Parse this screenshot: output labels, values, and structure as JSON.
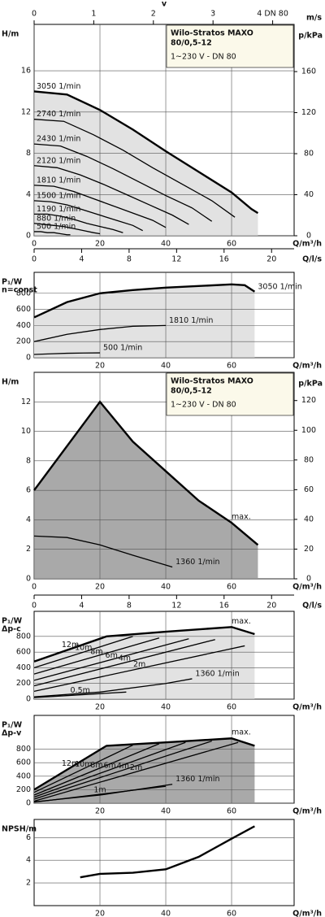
{
  "chart_data": [
    {
      "type": "axis",
      "xlabel": "v",
      "unit": "m/s",
      "xlim": [
        0,
        4.36
      ],
      "xticks": [
        0,
        1,
        2,
        3,
        {
          "value": 4,
          "label": "4 DN 80"
        }
      ]
    },
    {
      "type": "line",
      "title": [
        "Wilo-Stratos MAXO",
        "80/0,5-12"
      ],
      "subtitle": "1~230 V - DN 80",
      "ylabel": [
        "H/m"
      ],
      "y2label": "p/kPa",
      "xlabel": "Q/m³/h",
      "xlim": [
        0,
        79
      ],
      "xticks": [
        0,
        20,
        40,
        60
      ],
      "ylim": [
        0,
        20.5
      ],
      "yticks": [
        0,
        4,
        8,
        12,
        16
      ],
      "y2lim": [
        0,
        206
      ],
      "y2ticks": [
        0,
        40,
        80,
        120,
        160
      ],
      "fill": "#e2e2e2",
      "series": [
        {
          "name": "3050 1/min",
          "x": [
            0,
            10,
            20,
            30,
            40,
            50,
            60,
            66,
            68
          ],
          "values": [
            14,
            13.7,
            12.2,
            10.3,
            8.2,
            6.2,
            4.2,
            2.6,
            2.2
          ]
        },
        {
          "name": "2740 1/min",
          "x": [
            0,
            9,
            18,
            27,
            36,
            45,
            54,
            61
          ],
          "values": [
            11.3,
            11.1,
            9.8,
            8.3,
            6.6,
            5.0,
            3.4,
            1.8
          ]
        },
        {
          "name": "2430 1/min",
          "x": [
            0,
            8,
            16,
            24,
            32,
            40,
            48,
            54
          ],
          "values": [
            8.9,
            8.7,
            7.7,
            6.5,
            5.2,
            3.9,
            2.7,
            1.4
          ]
        },
        {
          "name": "2120 1/min",
          "x": [
            0,
            7,
            14,
            21,
            28,
            35,
            42,
            47
          ],
          "values": [
            6.8,
            6.6,
            5.9,
            5.0,
            4.0,
            3.0,
            2.0,
            1.1
          ]
        },
        {
          "name": "1810 1/min",
          "x": [
            0,
            6,
            12,
            18,
            24,
            30,
            36,
            40
          ],
          "values": [
            4.9,
            4.8,
            4.3,
            3.6,
            2.9,
            2.2,
            1.5,
            0.8
          ]
        },
        {
          "name": "1500 1/min",
          "x": [
            0,
            5,
            10,
            15,
            20,
            25,
            30,
            33
          ],
          "values": [
            3.4,
            3.3,
            3.0,
            2.5,
            2.0,
            1.5,
            1.0,
            0.5
          ]
        },
        {
          "name": "1190 1/min",
          "x": [
            0,
            4,
            8,
            12,
            16,
            20,
            24,
            27
          ],
          "values": [
            2.1,
            2.1,
            1.9,
            1.6,
            1.2,
            0.9,
            0.6,
            0.3
          ]
        },
        {
          "name": "880 1/min",
          "x": [
            0,
            3,
            6,
            9,
            12,
            15,
            18,
            20
          ],
          "values": [
            1.2,
            1.1,
            1.0,
            0.9,
            0.7,
            0.5,
            0.3,
            0.2
          ]
        },
        {
          "name": "500 1/min",
          "x": [
            0,
            2,
            4,
            6,
            8,
            10,
            11
          ],
          "values": [
            0.4,
            0.4,
            0.3,
            0.3,
            0.2,
            0.1,
            0.1
          ]
        }
      ]
    },
    {
      "type": "axis",
      "xlabel": "Q/l/s",
      "xlim": [
        0,
        21.9
      ],
      "xticks": [
        0,
        4,
        8,
        12,
        16,
        20
      ]
    },
    {
      "type": "line",
      "ylabel": [
        "P₁/W",
        "n=const"
      ],
      "xlabel": "Q/m³/h",
      "xlim": [
        0,
        79
      ],
      "xticks": [
        20,
        40,
        60
      ],
      "ylim": [
        0,
        1060
      ],
      "yticks": [
        0,
        200,
        400,
        600,
        800
      ],
      "fill": "#e2e2e2",
      "series": [
        {
          "name": "3050 1/min",
          "x": [
            0,
            10,
            20,
            30,
            40,
            50,
            60,
            64,
            67
          ],
          "values": [
            500,
            690,
            800,
            840,
            870,
            890,
            910,
            900,
            820
          ]
        },
        {
          "name": "1810 1/min",
          "x": [
            0,
            10,
            20,
            30,
            40
          ],
          "values": [
            200,
            290,
            350,
            390,
            400
          ]
        },
        {
          "name": "500 1/min",
          "x": [
            0,
            5,
            10,
            15,
            20
          ],
          "values": [
            40,
            48,
            55,
            58,
            60
          ]
        }
      ]
    },
    {
      "type": "line",
      "title": [
        "Wilo-Stratos MAXO",
        "80/0,5-12"
      ],
      "subtitle": "1~230 V - DN 80",
      "ylabel": [
        "H/m"
      ],
      "y2label": "p/kPa",
      "xlabel": "Q/m³/h",
      "xlim": [
        0,
        79
      ],
      "xticks": [
        0,
        20,
        40,
        60
      ],
      "ylim": [
        0,
        14
      ],
      "yticks": [
        0,
        2,
        4,
        6,
        8,
        10,
        12
      ],
      "y2lim": [
        0,
        139
      ],
      "y2ticks": [
        0,
        20,
        40,
        60,
        80,
        100,
        120
      ],
      "fill": "#a9a9a9",
      "series": [
        {
          "name": "max.",
          "x": [
            0,
            20,
            30,
            40,
            50,
            60,
            68
          ],
          "values": [
            6,
            12,
            9.3,
            7.3,
            5.3,
            3.8,
            2.3
          ]
        },
        {
          "name": "1360 1/min",
          "x": [
            0,
            10,
            20,
            30,
            42
          ],
          "values": [
            2.9,
            2.8,
            2.3,
            1.6,
            0.8
          ]
        }
      ]
    },
    {
      "type": "axis",
      "xlabel": "Q/l/s",
      "xlim": [
        0,
        21.9
      ],
      "xticks": [
        0,
        4,
        8,
        12,
        16,
        20
      ]
    },
    {
      "type": "line",
      "ylabel": [
        "P₁/W",
        "Δp-c"
      ],
      "xlabel": "Q/m³/h",
      "xlim": [
        0,
        79
      ],
      "xticks": [
        20,
        40,
        60
      ],
      "ylim": [
        0,
        1120
      ],
      "yticks": [
        0,
        200,
        400,
        600,
        800
      ],
      "fill": "#e2e2e2",
      "series": [
        {
          "name": "max.",
          "x": [
            0,
            22,
            40,
            60,
            67
          ],
          "values": [
            480,
            800,
            860,
            920,
            830
          ]
        },
        {
          "name": "12m",
          "x": [
            0,
            22
          ],
          "values": [
            480,
            800
          ]
        },
        {
          "name": "10m",
          "x": [
            0,
            30
          ],
          "values": [
            400,
            800
          ]
        },
        {
          "name": "8m",
          "x": [
            0,
            38
          ],
          "values": [
            320,
            780
          ]
        },
        {
          "name": "6m",
          "x": [
            0,
            47
          ],
          "values": [
            240,
            770
          ]
        },
        {
          "name": "4m",
          "x": [
            0,
            55
          ],
          "values": [
            170,
            760
          ]
        },
        {
          "name": "2m",
          "x": [
            0,
            64
          ],
          "values": [
            100,
            680
          ]
        },
        {
          "name": "0.5m",
          "x": [
            0,
            28
          ],
          "values": [
            20,
            90
          ]
        },
        {
          "name": "1360 1/min",
          "x": [
            0,
            20,
            40,
            48
          ],
          "values": [
            30,
            90,
            200,
            260
          ]
        }
      ]
    },
    {
      "type": "line",
      "ylabel": [
        "P₁/W",
        "Δp-v"
      ],
      "xlabel": "Q/m³/h",
      "xlim": [
        0,
        79
      ],
      "xticks": [
        20,
        40,
        60
      ],
      "ylim": [
        0,
        1300
      ],
      "yticks": [
        0,
        200,
        400,
        600,
        800
      ],
      "fill": "#a9a9a9",
      "series": [
        {
          "name": "max.",
          "x": [
            0,
            22,
            40,
            60,
            67
          ],
          "values": [
            200,
            850,
            900,
            960,
            850
          ]
        },
        {
          "name": "12m",
          "x": [
            0,
            22
          ],
          "values": [
            200,
            850
          ]
        },
        {
          "name": "10m",
          "x": [
            0,
            30
          ],
          "values": [
            160,
            860
          ]
        },
        {
          "name": "8m",
          "x": [
            0,
            38
          ],
          "values": [
            120,
            880
          ]
        },
        {
          "name": "6m",
          "x": [
            0,
            46
          ],
          "values": [
            90,
            900
          ]
        },
        {
          "name": "4m",
          "x": [
            0,
            54
          ],
          "values": [
            60,
            920
          ]
        },
        {
          "name": "2m",
          "x": [
            0,
            62
          ],
          "values": [
            30,
            900
          ]
        },
        {
          "name": "1m",
          "x": [
            0,
            40
          ],
          "values": [
            15,
            250
          ]
        },
        {
          "name": "1360 1/min",
          "x": [
            0,
            20,
            42
          ],
          "values": [
            20,
            120,
            280
          ]
        }
      ]
    },
    {
      "type": "line",
      "ylabel": [
        "NPSH/m"
      ],
      "xlabel": "Q/m³/h",
      "xlim": [
        0,
        79
      ],
      "xticks": [
        20,
        40,
        60
      ],
      "ylim": [
        0,
        7.6
      ],
      "yticks": [
        2,
        4,
        6
      ],
      "series": [
        {
          "x": [
            14,
            20,
            30,
            40,
            50,
            60,
            67
          ],
          "values": [
            2.5,
            2.8,
            2.9,
            3.2,
            4.3,
            5.9,
            7.0
          ]
        }
      ]
    }
  ]
}
